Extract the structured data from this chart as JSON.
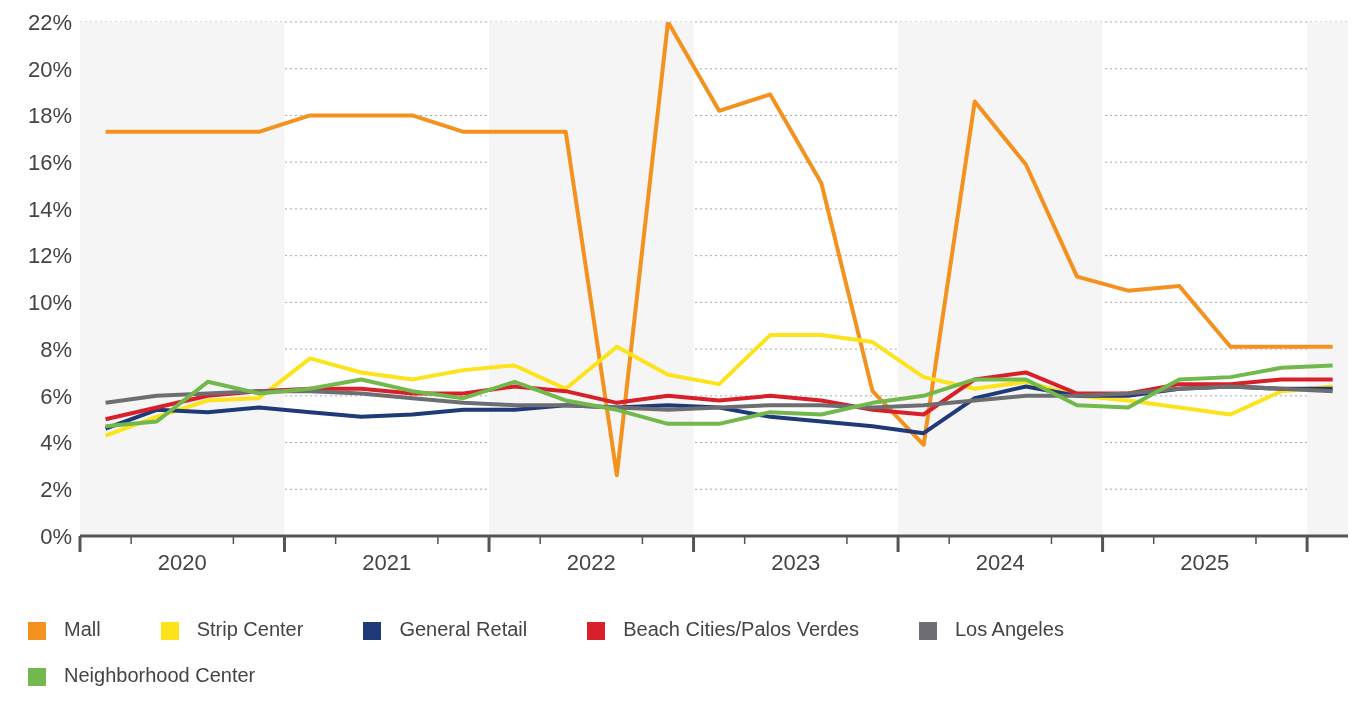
{
  "chart_data": {
    "type": "line",
    "x": [
      2020.125,
      2020.375,
      2020.625,
      2020.875,
      2021.125,
      2021.375,
      2021.625,
      2021.875,
      2022.125,
      2022.375,
      2022.625,
      2022.875,
      2023.125,
      2023.375,
      2023.625,
      2023.875,
      2024.125,
      2024.375,
      2024.625,
      2024.875,
      2025.125,
      2025.375,
      2025.625,
      2025.875,
      2026.125
    ],
    "xlim": [
      2020,
      2026.2
    ],
    "xticks": [
      {
        "value": 2020,
        "label": null
      },
      {
        "value": 2020.25,
        "label": null
      },
      {
        "value": 2020.5,
        "label": "2020"
      },
      {
        "value": 2020.75,
        "label": null
      },
      {
        "value": 2021,
        "label": null
      },
      {
        "value": 2021.25,
        "label": null
      },
      {
        "value": 2021.5,
        "label": "2021"
      },
      {
        "value": 2021.75,
        "label": null
      },
      {
        "value": 2022,
        "label": null
      },
      {
        "value": 2022.25,
        "label": null
      },
      {
        "value": 2022.5,
        "label": "2022"
      },
      {
        "value": 2022.75,
        "label": null
      },
      {
        "value": 2023,
        "label": null
      },
      {
        "value": 2023.25,
        "label": null
      },
      {
        "value": 2023.5,
        "label": "2023"
      },
      {
        "value": 2023.75,
        "label": null
      },
      {
        "value": 2024,
        "label": null
      },
      {
        "value": 2024.25,
        "label": null
      },
      {
        "value": 2024.5,
        "label": "2024"
      },
      {
        "value": 2024.75,
        "label": null
      },
      {
        "value": 2025,
        "label": null
      },
      {
        "value": 2025.25,
        "label": null
      },
      {
        "value": 2025.5,
        "label": "2025"
      },
      {
        "value": 2025.75,
        "label": null
      },
      {
        "value": 2026,
        "label": null
      }
    ],
    "ylim": [
      0,
      22
    ],
    "yticks": [
      {
        "value": 0,
        "label": "0%"
      },
      {
        "value": 2,
        "label": "2%"
      },
      {
        "value": 4,
        "label": "4%"
      },
      {
        "value": 6,
        "label": "6%"
      },
      {
        "value": 8,
        "label": "8%"
      },
      {
        "value": 10,
        "label": "10%"
      },
      {
        "value": 12,
        "label": "12%"
      },
      {
        "value": 14,
        "label": "14%"
      },
      {
        "value": 16,
        "label": "16%"
      },
      {
        "value": 18,
        "label": "18%"
      },
      {
        "value": 20,
        "label": "20%"
      },
      {
        "value": 22,
        "label": "22%"
      }
    ],
    "grid": "y",
    "legend": "bottom",
    "marker": "none",
    "line_style": "solid",
    "bands": [
      {
        "axis": "x",
        "from": 2020,
        "to": 2021,
        "color": "#f5f5f5"
      },
      {
        "axis": "x",
        "from": 2022,
        "to": 2023,
        "color": "#f5f5f5"
      },
      {
        "axis": "x",
        "from": 2024,
        "to": 2025,
        "color": "#f5f5f5"
      },
      {
        "axis": "x",
        "from": 2026,
        "to": 2026.2,
        "color": "#f5f5f5"
      }
    ],
    "series": [
      {
        "name": "Mall",
        "color": "#f3921f",
        "values": [
          17.3,
          17.3,
          17.3,
          17.3,
          18,
          18,
          18,
          17.3,
          17.3,
          17.3,
          2.6,
          22,
          18.2,
          18.9,
          15.1,
          6.2,
          3.9,
          18.6,
          15.9,
          11.1,
          10.5,
          10.7,
          8.1,
          8.1,
          8.1
        ]
      },
      {
        "name": "Strip Center",
        "color": "#fde31c",
        "values": [
          4.3,
          5.1,
          5.8,
          5.9,
          7.6,
          7,
          6.7,
          7.1,
          7.3,
          6.3,
          8.1,
          6.9,
          6.5,
          8.6,
          8.6,
          8.3,
          6.8,
          6.3,
          6.6,
          6,
          5.8,
          5.5,
          5.2,
          6.2,
          6.4
        ]
      },
      {
        "name": "General Retail",
        "color": "#1f3a78",
        "values": [
          4.6,
          5.4,
          5.3,
          5.5,
          5.3,
          5.1,
          5.2,
          5.4,
          5.4,
          5.6,
          5.5,
          5.6,
          5.5,
          5.1,
          4.9,
          4.7,
          4.4,
          5.9,
          6.4,
          6,
          6,
          6.3,
          6.4,
          6.3,
          6.3
        ]
      },
      {
        "name": "Beach Cities/Palos Verdes",
        "color": "#d7202a",
        "values": [
          5,
          5.5,
          6,
          6.2,
          6.3,
          6.3,
          6.1,
          6.1,
          6.4,
          6.2,
          5.7,
          6,
          5.8,
          6,
          5.8,
          5.4,
          5.2,
          6.7,
          7,
          6.1,
          6.1,
          6.5,
          6.5,
          6.7,
          6.7
        ]
      },
      {
        "name": "Los Angeles",
        "color": "#6d6e71",
        "values": [
          5.7,
          6,
          6.1,
          6.2,
          6.2,
          6.1,
          5.9,
          5.7,
          5.6,
          5.6,
          5.5,
          5.4,
          5.5,
          5.6,
          5.6,
          5.5,
          5.6,
          5.8,
          6,
          6,
          6.1,
          6.3,
          6.4,
          6.3,
          6.2
        ]
      },
      {
        "name": "Neighborhood Center",
        "color": "#72b84c",
        "values": [
          4.7,
          4.9,
          6.6,
          6.1,
          6.3,
          6.7,
          6.2,
          5.9,
          6.6,
          5.8,
          5.4,
          4.8,
          4.8,
          5.3,
          5.2,
          5.7,
          6,
          6.7,
          6.7,
          5.6,
          5.5,
          6.7,
          6.8,
          7.2,
          7.3
        ]
      }
    ]
  }
}
